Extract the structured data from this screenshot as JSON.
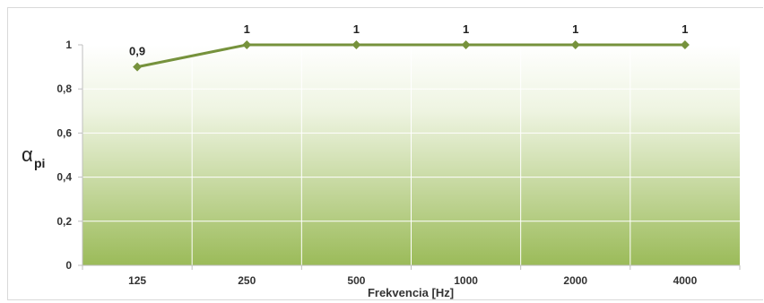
{
  "chart_data": {
    "type": "line",
    "categories": [
      "125",
      "250",
      "500",
      "1000",
      "2000",
      "4000"
    ],
    "series": [
      {
        "values": [
          0.9,
          1,
          1,
          1,
          1,
          1
        ]
      }
    ],
    "data_labels": [
      "0,9",
      "1",
      "1",
      "1",
      "1",
      "1"
    ],
    "xlabel": "Frekvencia [Hz]",
    "ylabel": {
      "symbol": "α",
      "subscript": "pi"
    },
    "ylim": [
      0,
      1
    ],
    "yticks": [
      0,
      0.2,
      0.4,
      0.6,
      0.8,
      1
    ],
    "ytick_labels": [
      "0",
      "0,2",
      "0,4",
      "0,6",
      "0,8",
      "1"
    ],
    "grid": true,
    "legend": "none",
    "colors": {
      "line": "#76923c",
      "marker": "#76923c",
      "plot_gradient_top": "#ffffff",
      "plot_gradient_bottom": "#9bbb59",
      "gridline": "#ffffff",
      "axis": "#bfbfbf"
    }
  }
}
